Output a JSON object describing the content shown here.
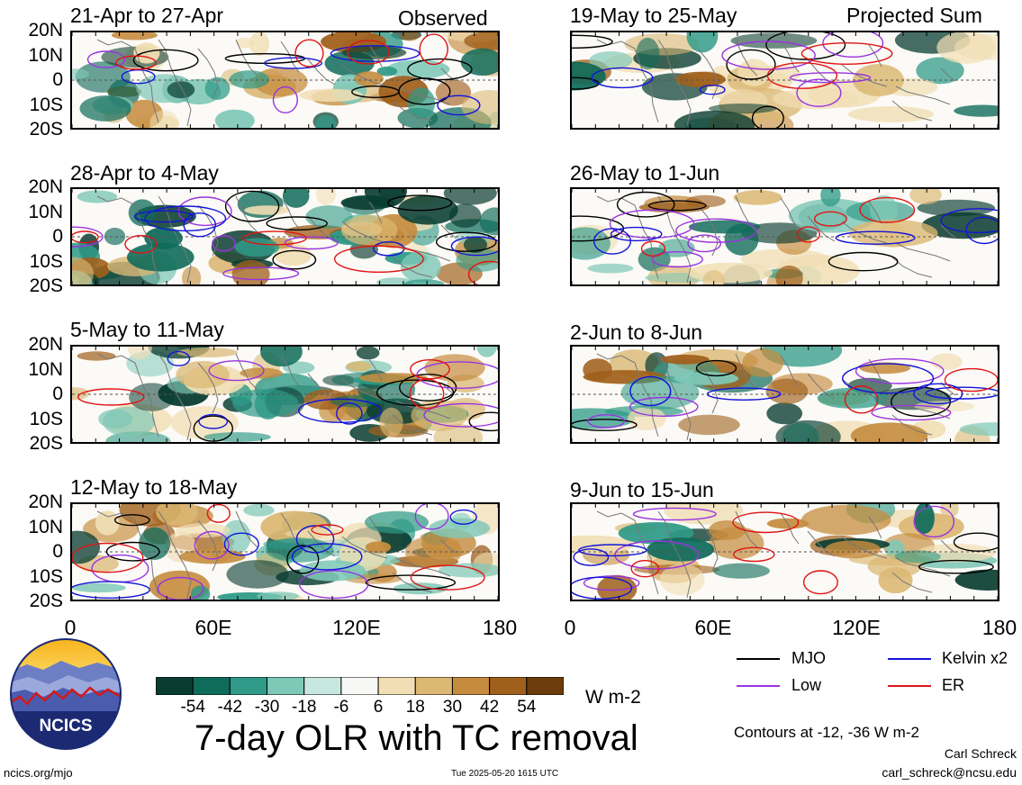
{
  "colors": {
    "mjo": "#000000",
    "low": "#9a33e0",
    "kelvin": "#1414d8",
    "er": "#e01414",
    "equator": "#555555",
    "coast": "#777777"
  },
  "tags": {
    "observed": "Observed",
    "projected": "Projected Sum"
  },
  "panels": [
    {
      "title": "21-Apr to 27-Apr"
    },
    {
      "title": "28-Apr to 4-May"
    },
    {
      "title": "5-May to 11-May"
    },
    {
      "title": "12-May to 18-May"
    },
    {
      "title": "19-May to 25-May"
    },
    {
      "title": "26-May to 1-Jun"
    },
    {
      "title": "2-Jun to 8-Jun"
    },
    {
      "title": "9-Jun to 15-Jun"
    }
  ],
  "lat_ticks": [
    "20N",
    "10N",
    "0",
    "10S",
    "20S"
  ],
  "lon_ticks": [
    "0",
    "60E",
    "120E",
    "180"
  ],
  "colorbar": {
    "labels": [
      "-54",
      "-42",
      "-30",
      "-18",
      "-6",
      "6",
      "18",
      "30",
      "42",
      "54"
    ],
    "colors": [
      "#0a3d31",
      "#0f6b5a",
      "#2f9a87",
      "#7fc8b7",
      "#c7e8df",
      "#f7f7f5",
      "#f1deb4",
      "#dbb874",
      "#c58c3f",
      "#a0601c",
      "#6b3c0c"
    ],
    "unit": "W m-2"
  },
  "legend": {
    "mjo": "MJO",
    "kelvin": "Kelvin x2",
    "low": "Low",
    "er": "ER"
  },
  "title": "7-day OLR with TC removal",
  "contours_note": "Contours at -12, -36 W m-2",
  "author": "Carl Schreck",
  "email": "carl_schreck@ncsu.edu",
  "url": "ncics.org/mjo",
  "timestamp": "Tue 2025-05-20 1615 UTC",
  "logo_text": "NCICS"
}
